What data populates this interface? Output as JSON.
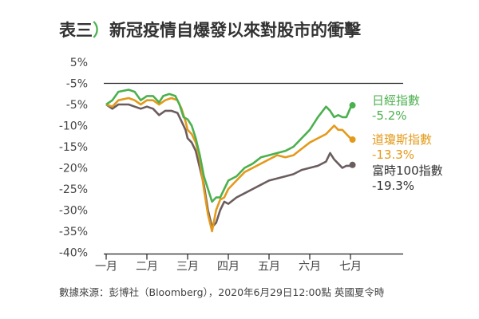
{
  "title": "表三）新冠疫情自爆發以來對股市的衝擊",
  "source": "數據來源：彭博社（Bloomberg），2020年6月29日12:00點 英國夏令時",
  "chart_data": {
    "type": "line",
    "title": "表三）新冠疫情自爆發以來對股市的衝擊",
    "xlabel": "",
    "ylabel": "",
    "x_ticks": [
      "一月",
      "二月",
      "三月",
      "四月",
      "五月",
      "六月",
      "七月"
    ],
    "y_ticks": [
      "5%",
      "-5%",
      "-5%",
      "-10%",
      "-15%",
      "-20%",
      "-25%",
      "-30%",
      "-35%",
      "-40%"
    ],
    "ylim": [
      -40,
      5
    ],
    "grid": false,
    "reference_line": -5,
    "legend_placement": "right",
    "series": [
      {
        "name": "日經指數",
        "final_label": "-5.2%",
        "color": "#4cb04e",
        "points": [
          [
            0.0,
            -5
          ],
          [
            0.15,
            -4
          ],
          [
            0.3,
            -2
          ],
          [
            0.55,
            -1.5
          ],
          [
            0.7,
            -2
          ],
          [
            0.85,
            -4
          ],
          [
            1.0,
            -3
          ],
          [
            1.15,
            -3
          ],
          [
            1.3,
            -4.5
          ],
          [
            1.4,
            -3
          ],
          [
            1.55,
            -2.5
          ],
          [
            1.7,
            -3
          ],
          [
            1.8,
            -5
          ],
          [
            1.9,
            -8
          ],
          [
            2.0,
            -8.5
          ],
          [
            2.1,
            -10
          ],
          [
            2.2,
            -13
          ],
          [
            2.3,
            -17
          ],
          [
            2.4,
            -22
          ],
          [
            2.5,
            -25
          ],
          [
            2.6,
            -28
          ],
          [
            2.7,
            -27
          ],
          [
            2.8,
            -27
          ],
          [
            2.9,
            -25
          ],
          [
            3.0,
            -23
          ],
          [
            3.2,
            -22
          ],
          [
            3.4,
            -20
          ],
          [
            3.6,
            -19
          ],
          [
            3.8,
            -17.5
          ],
          [
            4.0,
            -17
          ],
          [
            4.2,
            -16.5
          ],
          [
            4.4,
            -16
          ],
          [
            4.6,
            -15
          ],
          [
            4.8,
            -13
          ],
          [
            5.0,
            -11
          ],
          [
            5.2,
            -8
          ],
          [
            5.4,
            -5.5
          ],
          [
            5.5,
            -6.5
          ],
          [
            5.6,
            -8
          ],
          [
            5.7,
            -7.5
          ],
          [
            5.8,
            -8
          ],
          [
            5.9,
            -8
          ],
          [
            6.0,
            -5.8
          ],
          [
            6.05,
            -5.2
          ]
        ]
      },
      {
        "name": "道瓊斯指數",
        "final_label": "-13.3%",
        "color": "#e39a1b",
        "points": [
          [
            0.0,
            -5
          ],
          [
            0.15,
            -5.5
          ],
          [
            0.3,
            -4
          ],
          [
            0.55,
            -3.5
          ],
          [
            0.7,
            -4
          ],
          [
            0.85,
            -5
          ],
          [
            1.0,
            -4
          ],
          [
            1.15,
            -4
          ],
          [
            1.3,
            -5
          ],
          [
            1.45,
            -4
          ],
          [
            1.6,
            -3.5
          ],
          [
            1.75,
            -4
          ],
          [
            1.85,
            -6
          ],
          [
            1.95,
            -9
          ],
          [
            2.0,
            -11
          ],
          [
            2.1,
            -12
          ],
          [
            2.2,
            -14
          ],
          [
            2.3,
            -18
          ],
          [
            2.4,
            -25
          ],
          [
            2.5,
            -31
          ],
          [
            2.6,
            -35
          ],
          [
            2.7,
            -30
          ],
          [
            2.8,
            -27.5
          ],
          [
            2.9,
            -27
          ],
          [
            3.0,
            -25
          ],
          [
            3.2,
            -23
          ],
          [
            3.4,
            -21
          ],
          [
            3.6,
            -20
          ],
          [
            3.8,
            -19
          ],
          [
            4.0,
            -18
          ],
          [
            4.2,
            -17
          ],
          [
            4.4,
            -17.5
          ],
          [
            4.6,
            -17
          ],
          [
            4.8,
            -15.5
          ],
          [
            5.0,
            -14
          ],
          [
            5.2,
            -13
          ],
          [
            5.4,
            -12
          ],
          [
            5.5,
            -11
          ],
          [
            5.6,
            -10
          ],
          [
            5.7,
            -11
          ],
          [
            5.8,
            -11
          ],
          [
            5.9,
            -12
          ],
          [
            6.0,
            -13
          ],
          [
            6.05,
            -13.3
          ]
        ]
      },
      {
        "name": "富時100指數",
        "final_label": "-19.3%",
        "color": "#6b5d5e",
        "points": [
          [
            0.0,
            -5
          ],
          [
            0.15,
            -6
          ],
          [
            0.3,
            -5
          ],
          [
            0.55,
            -5
          ],
          [
            0.7,
            -5.5
          ],
          [
            0.85,
            -6
          ],
          [
            1.0,
            -5.5
          ],
          [
            1.15,
            -6
          ],
          [
            1.3,
            -7.5
          ],
          [
            1.45,
            -6.5
          ],
          [
            1.6,
            -6.5
          ],
          [
            1.75,
            -7
          ],
          [
            1.85,
            -9
          ],
          [
            1.95,
            -11
          ],
          [
            2.0,
            -13
          ],
          [
            2.1,
            -14
          ],
          [
            2.2,
            -16
          ],
          [
            2.3,
            -20
          ],
          [
            2.4,
            -24
          ],
          [
            2.5,
            -30
          ],
          [
            2.6,
            -34
          ],
          [
            2.7,
            -33
          ],
          [
            2.8,
            -30
          ],
          [
            2.9,
            -28
          ],
          [
            3.0,
            -28.5
          ],
          [
            3.2,
            -27
          ],
          [
            3.4,
            -26
          ],
          [
            3.6,
            -25
          ],
          [
            3.8,
            -24
          ],
          [
            4.0,
            -23
          ],
          [
            4.2,
            -22.5
          ],
          [
            4.4,
            -22
          ],
          [
            4.6,
            -21.5
          ],
          [
            4.8,
            -20.5
          ],
          [
            5.0,
            -20
          ],
          [
            5.2,
            -19.5
          ],
          [
            5.4,
            -18.5
          ],
          [
            5.5,
            -16.5
          ],
          [
            5.6,
            -18
          ],
          [
            5.7,
            -19
          ],
          [
            5.8,
            -20
          ],
          [
            5.9,
            -19.5
          ],
          [
            6.0,
            -19.5
          ],
          [
            6.05,
            -19.3
          ]
        ]
      }
    ]
  }
}
